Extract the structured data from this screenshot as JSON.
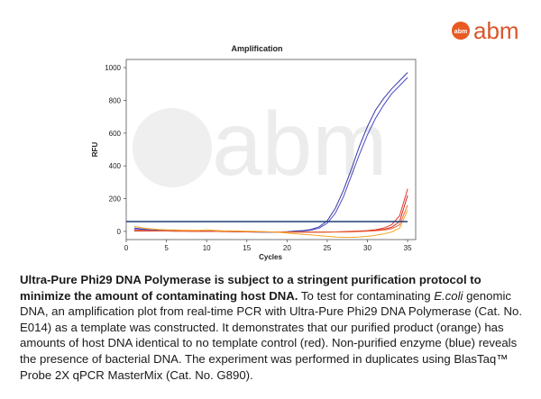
{
  "logo": {
    "badge_text": "abm",
    "word": "abm",
    "badge_color": "#e85a22",
    "word_color": "#d9562a"
  },
  "watermark": {
    "text": "abm",
    "color": "#ececec"
  },
  "chart_data": {
    "type": "line",
    "title": "Amplification",
    "xlabel": "Cycles",
    "ylabel": "RFU",
    "xlim": [
      0,
      36
    ],
    "ylim": [
      -50,
      1050
    ],
    "x_ticks": [
      0,
      5,
      10,
      15,
      20,
      25,
      30,
      35
    ],
    "y_ticks": [
      0,
      200,
      400,
      600,
      800,
      1000
    ],
    "grid": false,
    "legend": "none",
    "threshold": {
      "value": 60,
      "color": "#1f3f7a"
    },
    "x": [
      1,
      2,
      3,
      4,
      5,
      6,
      7,
      8,
      9,
      10,
      11,
      12,
      13,
      14,
      15,
      16,
      17,
      18,
      19,
      20,
      21,
      22,
      23,
      24,
      25,
      26,
      27,
      28,
      29,
      30,
      31,
      32,
      33,
      34,
      35
    ],
    "series": [
      {
        "color": "#3a3aa8",
        "values": [
          20,
          15,
          10,
          8,
          6,
          5,
          4,
          3,
          2,
          2,
          1,
          0,
          -1,
          -2,
          -3,
          -4,
          -5,
          -5,
          -4,
          -2,
          2,
          5,
          12,
          28,
          65,
          140,
          250,
          380,
          520,
          640,
          740,
          810,
          870,
          920,
          970
        ]
      },
      {
        "color": "#4a4ac4",
        "values": [
          12,
          10,
          8,
          6,
          5,
          4,
          3,
          2,
          2,
          1,
          0,
          0,
          -1,
          -2,
          -3,
          -4,
          -5,
          -5,
          -5,
          -4,
          -2,
          2,
          8,
          20,
          50,
          110,
          210,
          340,
          470,
          590,
          690,
          770,
          840,
          890,
          940
        ]
      },
      {
        "color": "#e8352a",
        "values": [
          5,
          4,
          4,
          3,
          3,
          2,
          2,
          1,
          1,
          0,
          0,
          -1,
          -1,
          -2,
          -2,
          -3,
          -3,
          -3,
          -4,
          -4,
          -5,
          -5,
          -5,
          -5,
          -4,
          -3,
          -2,
          0,
          2,
          5,
          10,
          20,
          40,
          95,
          260
        ]
      },
      {
        "color": "#c8281e",
        "values": [
          3,
          3,
          2,
          2,
          2,
          1,
          1,
          1,
          0,
          0,
          0,
          -1,
          -1,
          -1,
          -2,
          -2,
          -2,
          -3,
          -3,
          -3,
          -4,
          -4,
          -4,
          -4,
          -3,
          -3,
          -2,
          -1,
          1,
          3,
          6,
          12,
          25,
          60,
          220
        ]
      },
      {
        "color": "#f06a3a",
        "values": [
          8,
          6,
          5,
          4,
          3,
          3,
          2,
          2,
          1,
          1,
          0,
          0,
          -1,
          -1,
          -2,
          -2,
          -3,
          -3,
          -3,
          -4,
          -4,
          -4,
          -5,
          -5,
          -5,
          -4,
          -4,
          -3,
          -1,
          1,
          4,
          8,
          16,
          40,
          160
        ]
      },
      {
        "color": "#f5a623",
        "values": [
          30,
          22,
          16,
          12,
          10,
          9,
          8,
          7,
          6,
          10,
          6,
          4,
          3,
          2,
          1,
          0,
          -2,
          -4,
          -6,
          -10,
          -14,
          -18,
          -22,
          -26,
          -30,
          -34,
          -36,
          -36,
          -34,
          -30,
          -24,
          -16,
          -4,
          20,
          130
        ]
      }
    ]
  },
  "caption": {
    "bold": "Ultra-Pure Phi29 DNA Polymerase is subject to a stringent purification protocol to minimize the amount of contaminating host DNA.",
    "part1": " To test for contaminating ",
    "ecoli": "E.coli",
    "part2": " genomic DNA, an amplification plot from real-time PCR with Ultra-Pure Phi29 DNA Polymerase (Cat. No. E014) as a template was constructed. It demonstrates that our purified product (orange) has amounts of host DNA identical to no template control (red). Non-purified enzyme (blue) reveals the presence of  bacterial DNA. The experiment was performed in duplicates using BlasTaq™ Probe 2X qPCR MasterMix (Cat. No. G890)."
  }
}
